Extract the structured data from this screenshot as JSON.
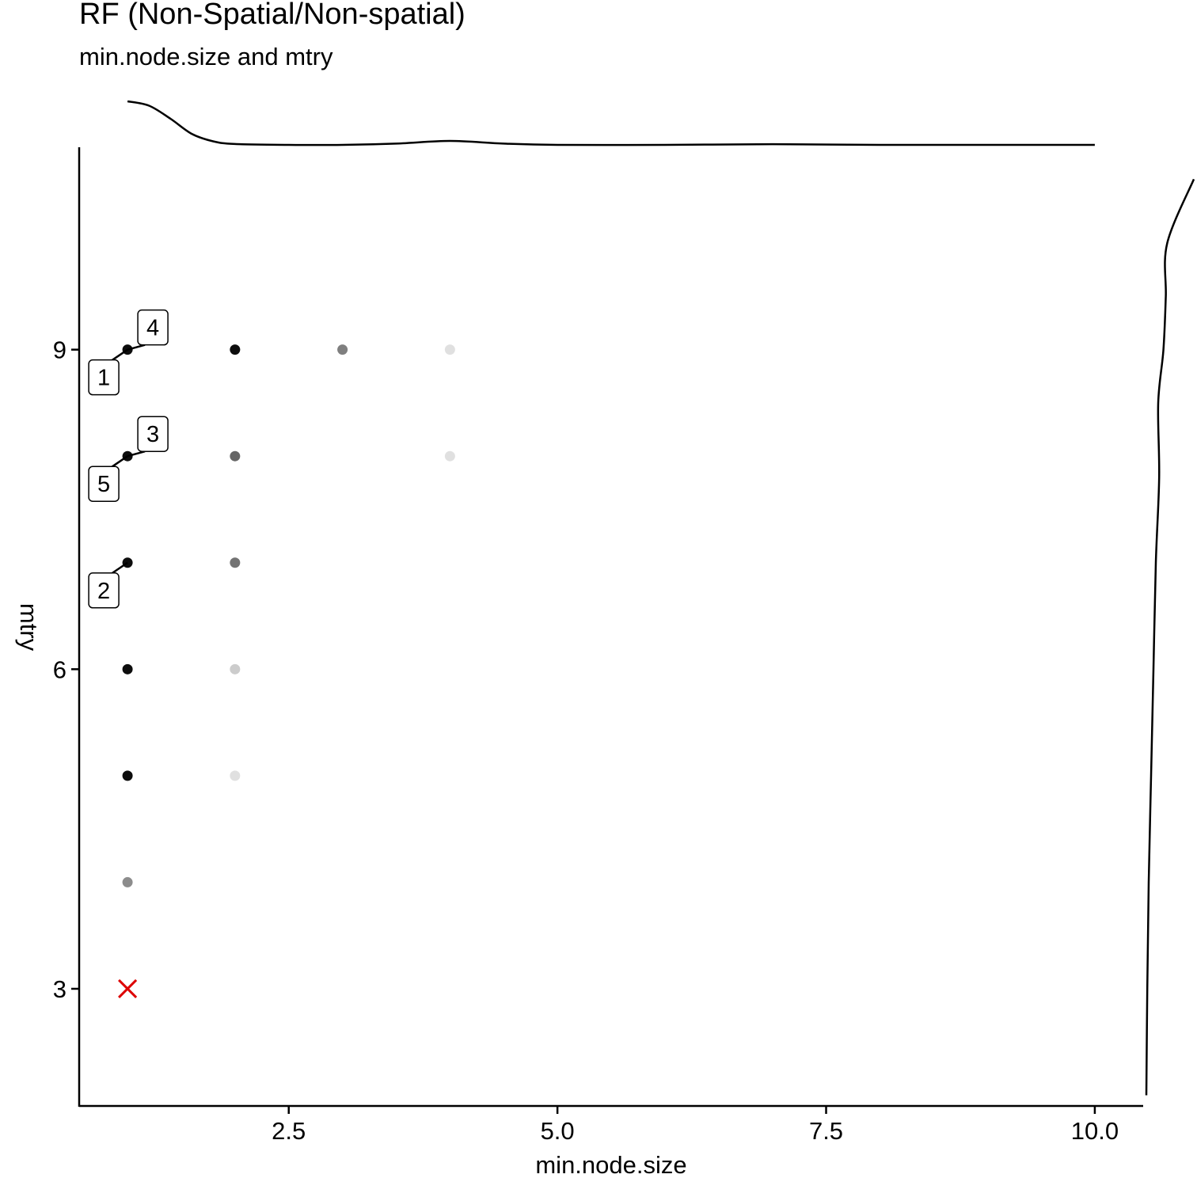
{
  "chart_data": {
    "type": "scatter",
    "title": "RF (Non-Spatial/Non-spatial)",
    "subtitle": "min.node.size and mtry",
    "xlabel": "min.node.size",
    "ylabel": "mtry",
    "xlim": [
      0.55,
      10.45
    ],
    "ylim": [
      1.9,
      10.9
    ],
    "x_ticks": [
      2.5,
      5.0,
      7.5,
      10.0
    ],
    "x_tick_labels": [
      "2.5",
      "5.0",
      "7.5",
      "10.0"
    ],
    "y_ticks": [
      3,
      6,
      9
    ],
    "y_tick_labels": [
      "3",
      "6",
      "9"
    ],
    "grid": false,
    "legend": "none",
    "points": [
      {
        "x": 1,
        "y": 9,
        "opacity": 0.95
      },
      {
        "x": 1,
        "y": 8,
        "opacity": 0.95
      },
      {
        "x": 1,
        "y": 7,
        "opacity": 0.95
      },
      {
        "x": 1,
        "y": 6,
        "opacity": 0.95
      },
      {
        "x": 1,
        "y": 5,
        "opacity": 0.95
      },
      {
        "x": 1,
        "y": 4,
        "opacity": 0.45
      },
      {
        "x": 2,
        "y": 9,
        "opacity": 0.95
      },
      {
        "x": 2,
        "y": 8,
        "opacity": 0.6
      },
      {
        "x": 2,
        "y": 7,
        "opacity": 0.55
      },
      {
        "x": 2,
        "y": 6,
        "opacity": 0.2
      },
      {
        "x": 2,
        "y": 5,
        "opacity": 0.12
      },
      {
        "x": 3,
        "y": 9,
        "opacity": 0.5
      },
      {
        "x": 4,
        "y": 9,
        "opacity": 0.12
      },
      {
        "x": 4,
        "y": 8,
        "opacity": 0.12
      }
    ],
    "default_marker": {
      "x": 1,
      "y": 3,
      "color": "#dd0000",
      "shape": "x"
    },
    "ranked_labels": [
      {
        "rank": "1",
        "x": 1,
        "y": 9,
        "side": "lower-left"
      },
      {
        "rank": "4",
        "x": 1,
        "y": 9,
        "side": "upper-right"
      },
      {
        "rank": "3",
        "x": 1,
        "y": 8,
        "side": "upper-right"
      },
      {
        "rank": "5",
        "x": 1,
        "y": 8,
        "side": "lower-left"
      },
      {
        "rank": "2",
        "x": 1,
        "y": 7,
        "side": "lower-left"
      }
    ],
    "marginal_density_x": {
      "x": [
        1.0,
        1.2,
        1.4,
        1.6,
        1.8,
        2.0,
        2.5,
        3.0,
        3.5,
        4.0,
        4.5,
        5.0,
        6.0,
        7.0,
        8.0,
        9.0,
        10.0
      ],
      "d": [
        1.0,
        0.9,
        0.6,
        0.25,
        0.08,
        0.02,
        0.0,
        0.0,
        0.03,
        0.09,
        0.03,
        0.0,
        0.0,
        0.015,
        0.0,
        0.0,
        0.0
      ]
    },
    "marginal_density_y": {
      "y": [
        2.0,
        3.0,
        4.0,
        5.0,
        6.0,
        7.0,
        7.8,
        8.5,
        9.0,
        9.5,
        10.0,
        10.6
      ],
      "d": [
        0.0,
        0.02,
        0.05,
        0.1,
        0.15,
        0.2,
        0.27,
        0.25,
        0.36,
        0.41,
        0.44,
        1.0
      ]
    }
  }
}
